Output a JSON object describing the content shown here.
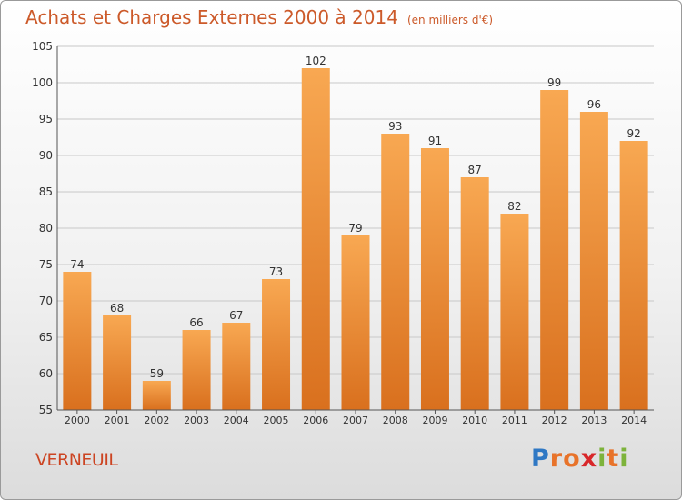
{
  "title": "Achats et Charges Externes 2000 à 2014",
  "unit": "(en milliers d'€)",
  "commune": "VERNEUIL",
  "brand": {
    "text": "Proxiti",
    "letters": [
      {
        "ch": "P",
        "color": "#2f78c4"
      },
      {
        "ch": "r",
        "color": "#e8732a"
      },
      {
        "ch": "o",
        "color": "#e8732a"
      },
      {
        "ch": "x",
        "color": "#d8272a"
      },
      {
        "ch": "i",
        "color": "#7db33b"
      },
      {
        "ch": "t",
        "color": "#e8732a"
      },
      {
        "ch": "i",
        "color": "#7db33b"
      }
    ]
  },
  "colors": {
    "bar_light": "#f8a852",
    "bar_dark": "#d9701e",
    "title": "#cc5a2a"
  },
  "chart_data": {
    "type": "bar",
    "categories": [
      "2000",
      "2001",
      "2002",
      "2003",
      "2004",
      "2005",
      "2006",
      "2007",
      "2008",
      "2009",
      "2010",
      "2011",
      "2012",
      "2013",
      "2014"
    ],
    "values": [
      74,
      68,
      59,
      66,
      67,
      73,
      102,
      79,
      93,
      91,
      87,
      82,
      99,
      96,
      92
    ],
    "ylim": [
      55,
      105
    ],
    "yticks": [
      55,
      60,
      65,
      70,
      75,
      80,
      85,
      90,
      95,
      100,
      105
    ],
    "grid": true,
    "xlabel": "",
    "ylabel": ""
  }
}
